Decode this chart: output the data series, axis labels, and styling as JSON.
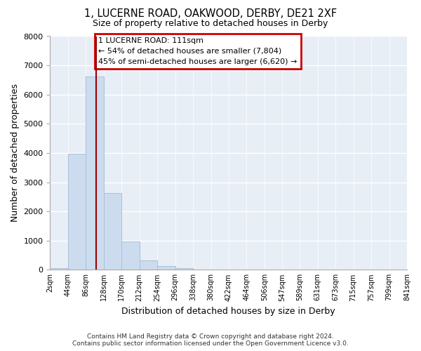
{
  "title": "1, LUCERNE ROAD, OAKWOOD, DERBY, DE21 2XF",
  "subtitle": "Size of property relative to detached houses in Derby",
  "xlabel": "Distribution of detached houses by size in Derby",
  "ylabel": "Number of detached properties",
  "bar_color": "#ccdcee",
  "bar_edgecolor": "#aabfd8",
  "background_color": "#ffffff",
  "plot_bg_color": "#e8eef5",
  "grid_color": "#ffffff",
  "bin_edges": [
    2,
    44,
    86,
    128,
    170,
    212,
    254,
    296,
    338,
    380,
    422,
    464,
    506,
    547,
    589,
    631,
    673,
    715,
    757,
    799,
    841
  ],
  "bin_labels": [
    "2sqm",
    "44sqm",
    "86sqm",
    "128sqm",
    "170sqm",
    "212sqm",
    "254sqm",
    "296sqm",
    "338sqm",
    "380sqm",
    "422sqm",
    "464sqm",
    "506sqm",
    "547sqm",
    "589sqm",
    "631sqm",
    "673sqm",
    "715sqm",
    "757sqm",
    "799sqm",
    "841sqm"
  ],
  "bar_heights": [
    60,
    3980,
    6610,
    2620,
    960,
    320,
    130,
    60,
    0,
    0,
    0,
    0,
    0,
    0,
    0,
    0,
    0,
    0,
    0,
    0
  ],
  "property_line_x": 111,
  "property_line_color": "#990000",
  "annotation_line1": "1 LUCERNE ROAD: 111sqm",
  "annotation_line2": "← 54% of detached houses are smaller (7,804)",
  "annotation_line3": "45% of semi-detached houses are larger (6,620) →",
  "footer_line1": "Contains HM Land Registry data © Crown copyright and database right 2024.",
  "footer_line2": "Contains public sector information licensed under the Open Government Licence v3.0.",
  "ylim": [
    0,
    8000
  ],
  "yticks": [
    0,
    1000,
    2000,
    3000,
    4000,
    5000,
    6000,
    7000,
    8000
  ]
}
